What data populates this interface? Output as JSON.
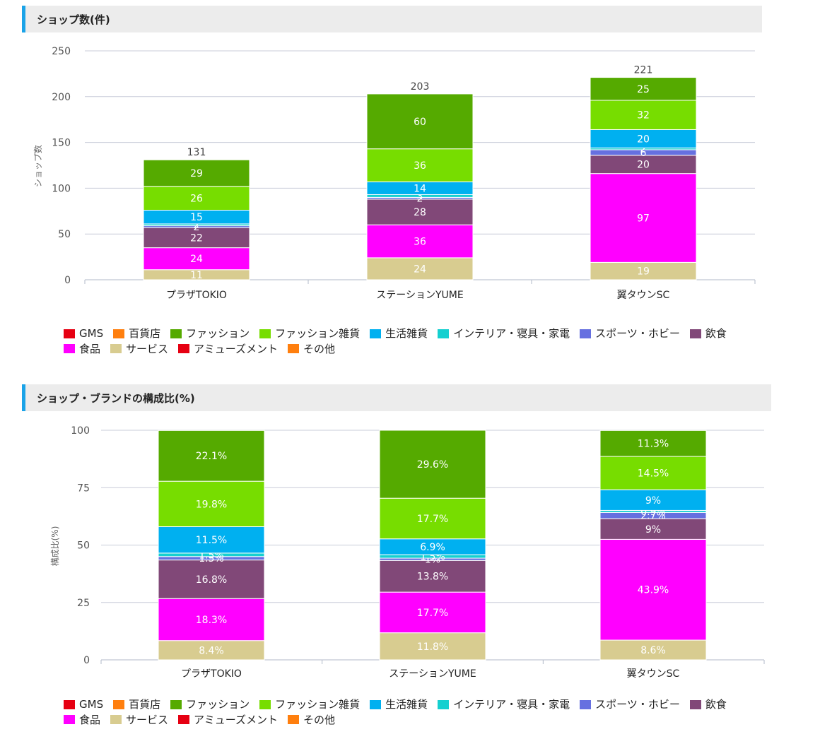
{
  "legend": [
    {
      "name": "GMS",
      "color": "#e60012"
    },
    {
      "name": "百貨店",
      "color": "#ff7f0e"
    },
    {
      "name": "ファッション",
      "color": "#55aa00"
    },
    {
      "name": "ファッション雑貨",
      "color": "#77dd00"
    },
    {
      "name": "生活雑貨",
      "color": "#00b0f0"
    },
    {
      "name": "インテリア・寝具・家電",
      "color": "#15d0d0"
    },
    {
      "name": "スポーツ・ホビー",
      "color": "#6670e0"
    },
    {
      "name": "飲食",
      "color": "#814878"
    },
    {
      "name": "食品",
      "color": "#ff00ff"
    },
    {
      "name": "サービス",
      "color": "#d8cc90"
    },
    {
      "name": "アミューズメント",
      "color": "#e60012"
    },
    {
      "name": "その他",
      "color": "#ff7f0e"
    }
  ],
  "charts": [
    {
      "title": "ショップ数(件)"
    },
    {
      "title": "ショップ・ブランドの構成比(%)"
    }
  ],
  "chart_data": [
    {
      "type": "bar",
      "stacked": true,
      "title": "ショップ数(件)",
      "ylabel": "ショップ数",
      "ylim": [
        0,
        250
      ],
      "yticks": [
        0,
        50,
        100,
        150,
        200,
        250
      ],
      "grid": true,
      "legend_position": "bottom",
      "categories": [
        "プラザTOKIO",
        "ステーションYUME",
        "翼タウンSC"
      ],
      "totals": [
        131,
        203,
        221
      ],
      "series": [
        {
          "name": "サービス",
          "values": [
            11,
            24,
            19
          ],
          "labels": [
            "11",
            "24",
            "19"
          ]
        },
        {
          "name": "食品",
          "values": [
            24,
            36,
            97
          ],
          "labels": [
            "24",
            "36",
            "97"
          ]
        },
        {
          "name": "飲食",
          "values": [
            22,
            28,
            20
          ],
          "labels": [
            "22",
            "28",
            "20"
          ]
        },
        {
          "name": "スポーツ・ホビー",
          "values": [
            2,
            2,
            6
          ],
          "labels": [
            "2",
            "2",
            "6"
          ]
        },
        {
          "name": "インテリア・寝具・家電",
          "values": [
            2,
            3,
            2
          ],
          "labels": [
            "2",
            "3",
            "2"
          ]
        },
        {
          "name": "生活雑貨",
          "values": [
            15,
            14,
            20
          ],
          "labels": [
            "15",
            "14",
            "20"
          ]
        },
        {
          "name": "ファッション雑貨",
          "values": [
            26,
            36,
            32
          ],
          "labels": [
            "26",
            "36",
            "32"
          ]
        },
        {
          "name": "ファッション",
          "values": [
            29,
            60,
            25
          ],
          "labels": [
            "29",
            "60",
            "25"
          ]
        }
      ]
    },
    {
      "type": "bar",
      "stacked": true,
      "title": "ショップ・ブランドの構成比(%)",
      "ylabel": "構成比(%)",
      "ylim": [
        0,
        100
      ],
      "yticks": [
        0,
        25,
        50,
        75,
        100
      ],
      "grid": true,
      "legend_position": "bottom",
      "categories": [
        "プラザTOKIO",
        "ステーションYUME",
        "翼タウンSC"
      ],
      "series": [
        {
          "name": "サービス",
          "values": [
            8.4,
            11.8,
            8.6
          ],
          "labels": [
            "8.4%",
            "11.8%",
            "8.6%"
          ]
        },
        {
          "name": "食品",
          "values": [
            18.3,
            17.7,
            43.9
          ],
          "labels": [
            "18.3%",
            "17.7%",
            "43.9%"
          ]
        },
        {
          "name": "飲食",
          "values": [
            16.8,
            13.8,
            9
          ],
          "labels": [
            "16.8%",
            "13.8%",
            "9%"
          ]
        },
        {
          "name": "スポーツ・ホビー",
          "values": [
            1.5,
            1,
            2.7
          ],
          "labels": [
            "1.5%",
            "1%",
            "2.7%"
          ]
        },
        {
          "name": "インテリア・寝具・家電",
          "values": [
            1.5,
            1.5,
            0.9
          ],
          "labels": [
            "1.5%",
            "1.5%",
            "0.9%"
          ]
        },
        {
          "name": "生活雑貨",
          "values": [
            11.5,
            6.9,
            9
          ],
          "labels": [
            "11.5%",
            "6.9%",
            "9%"
          ]
        },
        {
          "name": "ファッション雑貨",
          "values": [
            19.8,
            17.7,
            14.5
          ],
          "labels": [
            "19.8%",
            "17.7%",
            "14.5%"
          ]
        },
        {
          "name": "ファッション",
          "values": [
            22.1,
            29.6,
            11.3
          ],
          "labels": [
            "22.1%",
            "29.6%",
            "11.3%"
          ]
        }
      ]
    }
  ]
}
